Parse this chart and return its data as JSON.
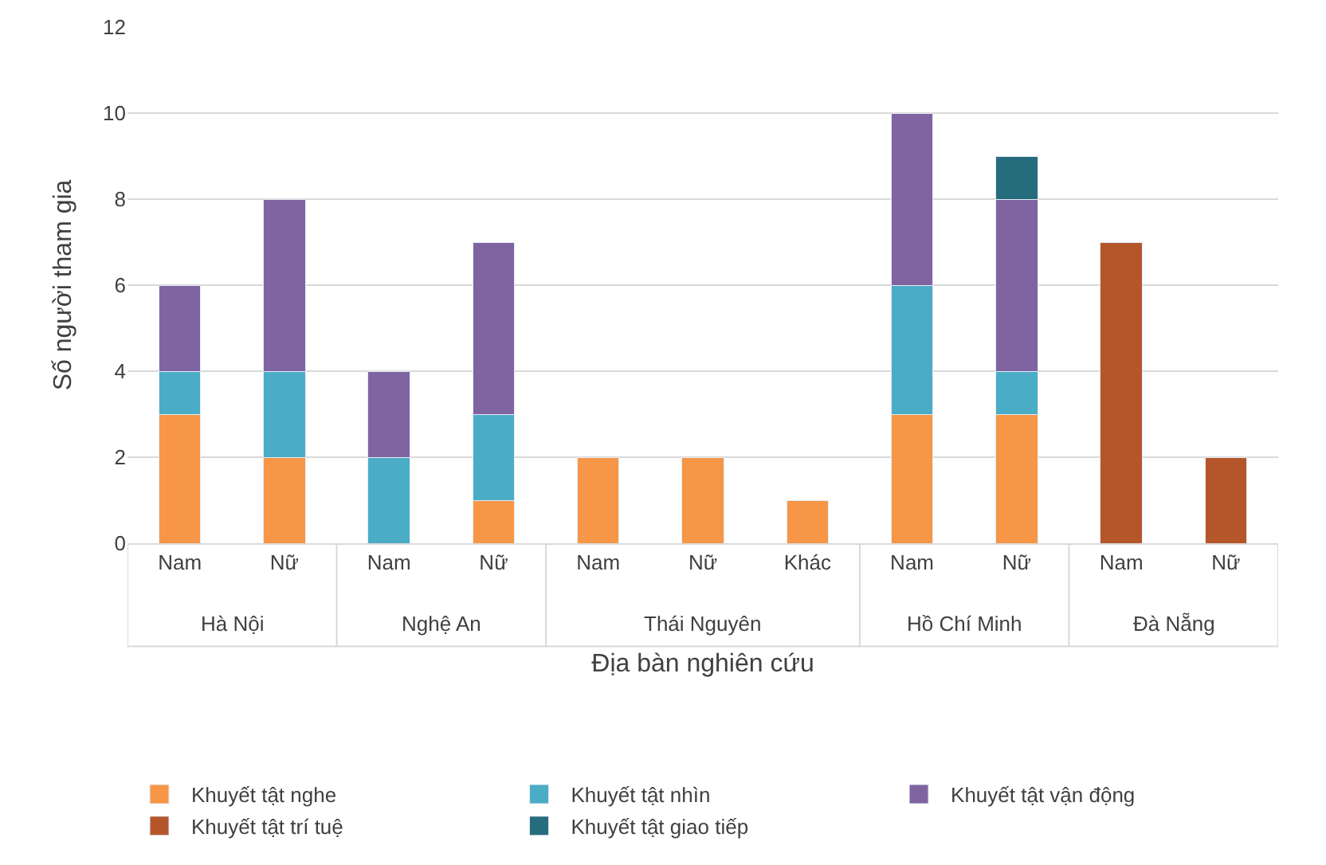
{
  "chart_data": {
    "type": "bar",
    "stacked": true,
    "xlabel": "Địa bàn nghiên cứu",
    "ylabel": "Số người tham gia",
    "categories": [
      "Nam",
      "Nữ",
      "Nam",
      "Nữ",
      "Nam",
      "Nữ",
      "Khác",
      "Nam",
      "Nữ",
      "Nam",
      "Nữ"
    ],
    "annotations": [
      "Hà Nội",
      "Nghệ An",
      "Thái Nguyên",
      "Hồ Chí Minh",
      "Đà Nẵng"
    ],
    "series": [
      {
        "name": "Khuyết tật nghe",
        "color": "#f79646",
        "values": [
          3,
          2,
          null,
          1,
          2,
          2,
          1,
          3,
          3,
          null,
          null
        ]
      },
      {
        "name": "Khuyết tật nhìn",
        "color": "#4bacc6",
        "values": [
          1,
          2,
          2,
          2,
          null,
          null,
          null,
          3,
          1,
          null,
          null
        ]
      },
      {
        "name": "Khuyết tật vận động",
        "color": "#8064a2",
        "values": [
          2,
          4,
          2,
          4,
          null,
          null,
          null,
          4,
          4,
          null,
          null
        ]
      },
      {
        "name": "Khuyết tật trí tuệ",
        "color": "#b5562a",
        "values": [
          null,
          null,
          null,
          null,
          null,
          null,
          null,
          null,
          null,
          7,
          2
        ]
      },
      {
        "name": "Khuyết tật giao tiếp",
        "color": "#256c7d",
        "values": [
          null,
          null,
          null,
          null,
          null,
          null,
          null,
          null,
          1,
          null,
          null
        ]
      }
    ],
    "ylim": [
      0,
      12
    ],
    "yticks": [
      0,
      2,
      4,
      6,
      8,
      10,
      12
    ],
    "grid": "y",
    "legend": "bottom"
  }
}
